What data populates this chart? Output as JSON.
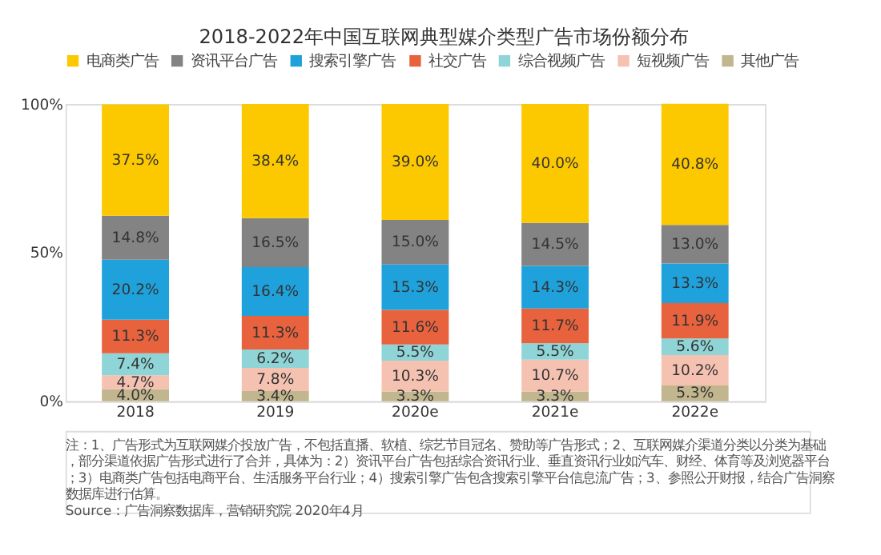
{
  "chart_data": {
    "type": "bar",
    "title": "2018-2022年中国互联网典型媒介类型广告市场份额分布",
    "stacked": true,
    "categories": [
      "2018",
      "2019",
      "2020e",
      "2021e",
      "2022e"
    ],
    "series": [
      {
        "name": "其他广告",
        "color": "#c2b68e",
        "values": [
          4.0,
          3.4,
          3.3,
          3.3,
          5.3
        ],
        "value_labels": [
          "4.0%",
          "3.4%",
          "3.3%",
          "3.3%",
          "5.3%"
        ]
      },
      {
        "name": "短视频广告",
        "color": "#f5c2b2",
        "values": [
          4.7,
          7.8,
          10.3,
          10.7,
          10.2
        ],
        "value_labels": [
          "4.7%",
          "7.8%",
          "10.3%",
          "10.7%",
          "10.2%"
        ]
      },
      {
        "name": "综合视频广告",
        "color": "#8fd4d6",
        "values": [
          7.4,
          6.2,
          5.5,
          5.5,
          5.6
        ],
        "value_labels": [
          "7.4%",
          "6.2%",
          "5.5%",
          "5.5%",
          "5.6%"
        ]
      },
      {
        "name": "社交广告",
        "color": "#e8623e",
        "values": [
          11.3,
          11.3,
          11.6,
          11.7,
          11.9
        ],
        "value_labels": [
          "11.3%",
          "11.3%",
          "11.6%",
          "11.7%",
          "11.9%"
        ]
      },
      {
        "name": "搜索引擎广告",
        "color": "#1fa2dc",
        "values": [
          20.2,
          16.4,
          15.3,
          14.3,
          13.3
        ],
        "value_labels": [
          "20.2%",
          "16.4%",
          "15.3%",
          "14.3%",
          "13.3%"
        ]
      },
      {
        "name": "资讯平台广告",
        "color": "#838383",
        "values": [
          14.8,
          16.5,
          15.0,
          14.5,
          13.0
        ],
        "value_labels": [
          "14.8%",
          "16.5%",
          "15.0%",
          "14.5%",
          "13.0%"
        ]
      },
      {
        "name": "电商类广告",
        "color": "#fcc800",
        "values": [
          37.5,
          38.4,
          39.0,
          40.0,
          40.8
        ],
        "value_labels": [
          "37.5%",
          "38.4%",
          "39.0%",
          "40.0%",
          "40.8%"
        ]
      }
    ],
    "ylim": [
      0,
      100
    ],
    "yticks": [
      {
        "value": 0,
        "label": "0%"
      },
      {
        "value": 50,
        "label": "50%"
      },
      {
        "value": 100,
        "label": "100%"
      }
    ],
    "grid": false,
    "legend": "top",
    "annotations": [
      "注：1、广告形式为互联网媒介投放广告，不包括直播、软植、综艺节目冠名、赞助等广告形式；2、互联网媒介渠道分类以分类为基础，部分渠道依据广告形式进行了合并，具体为：2）资讯平台广告包括综合资讯行业、垂直资讯行业如汽车、财经、体育等及浏览器平台；3）电商类广告包括电商平台、生活服务平台行业；4）搜索引擎广告包含搜索引擎平台信息流广告；3、参照公开财报，结合广告洞察数据库进行估算。",
      "Source：广告洞察数据库，营销研究院 2020年4月"
    ]
  }
}
